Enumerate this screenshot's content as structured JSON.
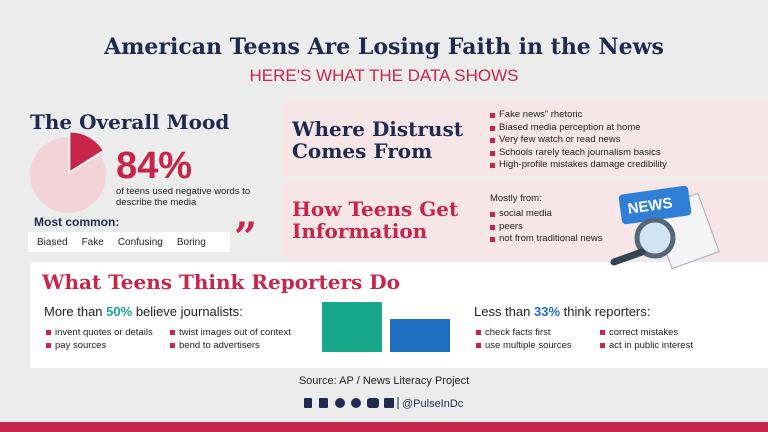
{
  "header": {
    "title": "American Teens Are Losing Faith in the News",
    "subtitle": "HERE'S WHAT THE DATA SHOWS"
  },
  "mood": {
    "heading": "The Overall Mood",
    "percent": 84,
    "percent_label": "84%",
    "caption": "of teens used negative words to describe the media",
    "common_label": "Most common:",
    "words": [
      "Biased",
      "Fake",
      "Confusing",
      "Boring"
    ],
    "quote_mark": "”"
  },
  "distrust": {
    "heading": "Where Distrust Comes From",
    "items": [
      "Fake news” rhetoric",
      "Biased media perception at home",
      "Very few watch or read news",
      "Schools rarely teach journalism basics",
      "High-profile mistakes damage credibility"
    ]
  },
  "sources": {
    "heading": "How Teens Get Information",
    "intro": "Mostly from:",
    "items": [
      "social media",
      "peers",
      "not from traditional news"
    ],
    "icon_label": "NEWS"
  },
  "reporters": {
    "heading": "What Teens Think Reporters Do",
    "believe": {
      "prefix": "More than",
      "percent": 50,
      "percent_label": "50%",
      "suffix": "believe journalists:",
      "items": [
        "invent quotes or details",
        "twist images out of context",
        "pay sources",
        "bend to advertisers"
      ]
    },
    "think": {
      "prefix": "Less than",
      "percent": 33,
      "percent_label": "33%",
      "suffix": "think reporters:",
      "items": [
        "check facts first",
        "correct mistakes",
        "use multiple sources",
        "act in public interest"
      ]
    }
  },
  "footer": {
    "source": "Source: AP / News Literacy Project",
    "handle": "@PulseInDc"
  }
}
